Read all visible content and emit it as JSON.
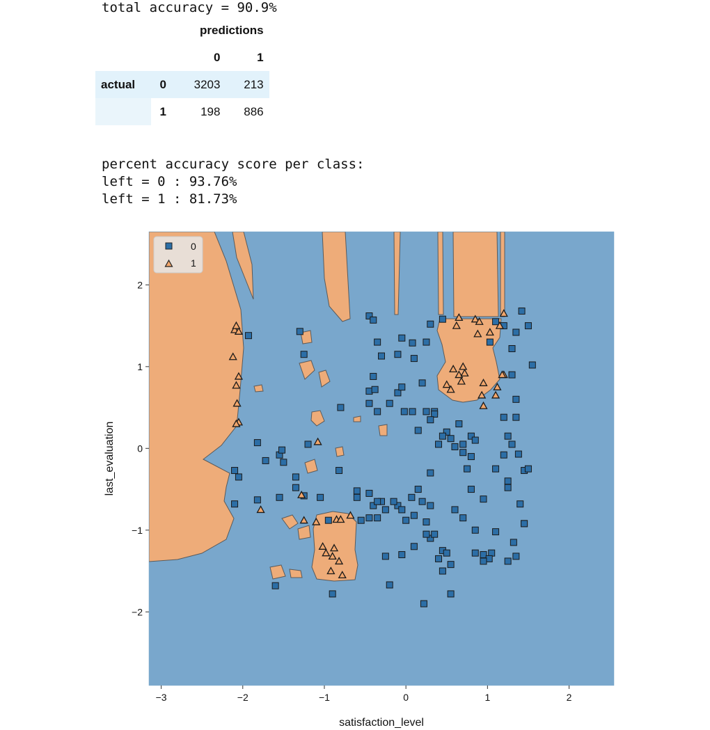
{
  "summary": {
    "total_accuracy": "total accuracy = 90.9%",
    "per_class_heading": "percent accuracy score per class:",
    "per_class": [
      "left = 0 : 93.76%",
      "left = 1 : 81.73%"
    ]
  },
  "confusion_matrix": {
    "header": "predictions",
    "pred_labels": [
      "0",
      "1"
    ],
    "row_header": "actual",
    "actual_labels": [
      "0",
      "1"
    ],
    "cells": [
      [
        "3203",
        "213"
      ],
      [
        "198",
        "886"
      ]
    ]
  },
  "colors": {
    "class0": "#79a7cc",
    "class1": "#eeac79",
    "marker0": "#2c6ea6",
    "marker1": "#f2a66b"
  },
  "chart_data": {
    "type": "scatter",
    "xlabel": "satisfaction_level",
    "ylabel": "last_evaluation",
    "xlim": [
      -3.15,
      2.55
    ],
    "ylim": [
      -2.9,
      2.65
    ],
    "xticks": [
      -3,
      -2,
      -1,
      0,
      1,
      2
    ],
    "yticks": [
      -2,
      -1,
      0,
      1,
      2
    ],
    "legend": {
      "position": "top-left",
      "entries": [
        "0",
        "1"
      ]
    },
    "series": [
      {
        "name": "0",
        "marker": "square",
        "points": [
          [
            -1.93,
            1.38
          ],
          [
            -1.3,
            1.43
          ],
          [
            -1.25,
            1.15
          ],
          [
            -0.8,
            0.5
          ],
          [
            -0.45,
            1.62
          ],
          [
            -0.4,
            1.57
          ],
          [
            -0.35,
            1.3
          ],
          [
            -0.3,
            1.13
          ],
          [
            -0.4,
            0.88
          ],
          [
            -0.45,
            0.7
          ],
          [
            -0.38,
            0.72
          ],
          [
            -0.45,
            0.55
          ],
          [
            -0.35,
            0.45
          ],
          [
            -0.2,
            0.55
          ],
          [
            -0.1,
            0.68
          ],
          [
            -0.05,
            1.35
          ],
          [
            0.08,
            1.29
          ],
          [
            -0.05,
            0.75
          ],
          [
            -0.02,
            0.45
          ],
          [
            0.08,
            0.45
          ],
          [
            0.25,
            0.45
          ],
          [
            0.35,
            0.45
          ],
          [
            -0.1,
            1.15
          ],
          [
            0.1,
            1.1
          ],
          [
            0.2,
            0.8
          ],
          [
            0.25,
            1.3
          ],
          [
            0.3,
            1.52
          ],
          [
            0.45,
            1.58
          ],
          [
            0.15,
            0.22
          ],
          [
            0.35,
            0.42
          ],
          [
            0.5,
            0.2
          ],
          [
            0.6,
            0.02
          ],
          [
            0.55,
            0.12
          ],
          [
            0.65,
            0.3
          ],
          [
            0.8,
            0.15
          ],
          [
            0.85,
            0.1
          ],
          [
            0.7,
            0.05
          ],
          [
            0.45,
            0.15
          ],
          [
            0.4,
            0.05
          ],
          [
            1.03,
            1.3
          ],
          [
            1.1,
            1.55
          ],
          [
            1.2,
            1.5
          ],
          [
            1.35,
            1.42
          ],
          [
            1.5,
            1.5
          ],
          [
            1.55,
            1.02
          ],
          [
            1.3,
            1.22
          ],
          [
            1.3,
            0.9
          ],
          [
            1.35,
            0.6
          ],
          [
            1.2,
            0.38
          ],
          [
            1.35,
            0.38
          ],
          [
            1.25,
            0.15
          ],
          [
            1.3,
            0.05
          ],
          [
            1.42,
            1.68
          ],
          [
            1.38,
            -0.07
          ],
          [
            1.45,
            -0.27
          ],
          [
            1.5,
            -0.25
          ],
          [
            1.1,
            -0.25
          ],
          [
            1.2,
            -0.08
          ],
          [
            1.25,
            -0.4
          ],
          [
            1.25,
            -0.48
          ],
          [
            1.4,
            -0.68
          ],
          [
            0.3,
            0.35
          ],
          [
            0.15,
            -0.5
          ],
          [
            0.07,
            -0.6
          ],
          [
            0.2,
            -0.65
          ],
          [
            0.3,
            -0.7
          ],
          [
            0.25,
            -0.9
          ],
          [
            0.1,
            -0.82
          ],
          [
            0.0,
            -0.88
          ],
          [
            -0.1,
            -0.7
          ],
          [
            -0.15,
            -0.65
          ],
          [
            -0.25,
            -0.75
          ],
          [
            -0.4,
            -0.7
          ],
          [
            -0.45,
            -0.85
          ],
          [
            -0.55,
            -0.88
          ],
          [
            -0.6,
            -0.6
          ],
          [
            -0.45,
            -0.55
          ],
          [
            -0.3,
            -0.65
          ],
          [
            -0.05,
            -0.75
          ],
          [
            0.1,
            -1.2
          ],
          [
            0.3,
            -1.1
          ],
          [
            0.35,
            -1.05
          ],
          [
            0.45,
            -1.25
          ],
          [
            0.5,
            -1.28
          ],
          [
            0.4,
            -1.35
          ],
          [
            0.45,
            -1.5
          ],
          [
            0.55,
            -1.42
          ],
          [
            0.25,
            -1.05
          ],
          [
            -0.25,
            -1.32
          ],
          [
            -0.05,
            -1.3
          ],
          [
            -0.2,
            -1.67
          ],
          [
            0.22,
            -1.9
          ],
          [
            0.55,
            -1.78
          ],
          [
            0.7,
            -0.05
          ],
          [
            0.75,
            -0.25
          ],
          [
            0.95,
            -0.62
          ],
          [
            0.7,
            -0.85
          ],
          [
            0.85,
            -1.0
          ],
          [
            0.95,
            -1.3
          ],
          [
            0.85,
            -1.28
          ],
          [
            1.05,
            -1.28
          ],
          [
            1.1,
            -1.02
          ],
          [
            1.35,
            -1.32
          ],
          [
            1.32,
            -1.15
          ],
          [
            1.45,
            -0.92
          ],
          [
            1.25,
            -1.38
          ],
          [
            1.02,
            -1.35
          ],
          [
            0.95,
            -1.38
          ],
          [
            0.8,
            -0.5
          ],
          [
            1.45,
            -0.92
          ],
          [
            -1.82,
            0.07
          ],
          [
            -2.1,
            -0.27
          ],
          [
            -1.72,
            -0.15
          ],
          [
            -1.55,
            -0.08
          ],
          [
            -1.5,
            -0.17
          ],
          [
            -1.55,
            -0.6
          ],
          [
            -1.35,
            -0.48
          ],
          [
            -1.25,
            -0.58
          ],
          [
            -1.35,
            -0.35
          ],
          [
            -1.2,
            0.05
          ],
          [
            -0.82,
            -0.27
          ],
          [
            -0.6,
            -0.52
          ],
          [
            -0.35,
            -0.65
          ],
          [
            -0.95,
            -0.88
          ],
          [
            -1.05,
            -0.6
          ],
          [
            -1.6,
            -1.68
          ],
          [
            -0.35,
            -0.85
          ],
          [
            -0.9,
            -1.78
          ],
          [
            -1.52,
            -0.02
          ],
          [
            0.3,
            -0.3
          ],
          [
            0.6,
            -0.75
          ],
          [
            0.8,
            -0.1
          ],
          [
            -2.05,
            -0.35
          ],
          [
            -1.82,
            -0.63
          ],
          [
            -2.1,
            -0.68
          ]
        ]
      },
      {
        "name": "1",
        "marker": "triangle",
        "points": [
          [
            -2.1,
            1.45
          ],
          [
            -2.05,
            1.43
          ],
          [
            -2.08,
            1.5
          ],
          [
            -2.12,
            1.12
          ],
          [
            -2.05,
            0.88
          ],
          [
            -2.08,
            0.77
          ],
          [
            -2.07,
            0.55
          ],
          [
            -2.05,
            0.32
          ],
          [
            -2.08,
            0.3
          ],
          [
            -1.78,
            -0.75
          ],
          [
            -1.28,
            -0.57
          ],
          [
            -1.25,
            -0.88
          ],
          [
            -1.1,
            -0.9
          ],
          [
            -0.85,
            -0.87
          ],
          [
            -0.8,
            -0.87
          ],
          [
            -0.68,
            -0.82
          ],
          [
            -1.02,
            -1.2
          ],
          [
            -0.98,
            -1.28
          ],
          [
            -0.88,
            -1.22
          ],
          [
            -0.82,
            -1.38
          ],
          [
            -0.92,
            -1.5
          ],
          [
            -0.78,
            -1.55
          ],
          [
            -0.9,
            -1.32
          ],
          [
            -1.08,
            0.08
          ],
          [
            0.65,
            1.6
          ],
          [
            0.62,
            1.5
          ],
          [
            0.85,
            1.58
          ],
          [
            0.9,
            1.55
          ],
          [
            1.2,
            1.65
          ],
          [
            1.15,
            1.5
          ],
          [
            0.65,
            0.9
          ],
          [
            0.72,
            0.92
          ],
          [
            0.68,
            0.82
          ],
          [
            0.5,
            0.78
          ],
          [
            0.55,
            0.72
          ],
          [
            0.58,
            0.97
          ],
          [
            0.7,
            1.0
          ],
          [
            1.2,
            0.9
          ],
          [
            0.95,
            0.8
          ],
          [
            1.12,
            0.75
          ],
          [
            0.93,
            0.65
          ],
          [
            0.95,
            0.52
          ],
          [
            1.18,
            0.9
          ],
          [
            1.1,
            0.65
          ],
          [
            0.88,
            1.4
          ],
          [
            1.03,
            1.42
          ]
        ]
      }
    ]
  }
}
